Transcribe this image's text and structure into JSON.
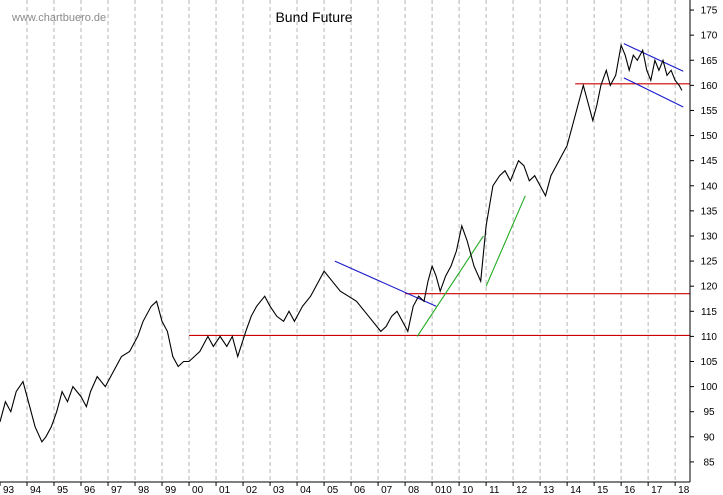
{
  "watermark": "www.chartbuero.de",
  "chart_data": {
    "type": "line",
    "title": "Bund Future",
    "xlabel": "",
    "ylabel": "",
    "ylim": [
      81,
      177
    ],
    "xlim": [
      1993.0,
      2018.55
    ],
    "y_axis_side": "right",
    "y_ticks": [
      85,
      90,
      95,
      100,
      105,
      110,
      115,
      120,
      125,
      130,
      135,
      140,
      145,
      150,
      155,
      160,
      165,
      170,
      175
    ],
    "x_ticks": [
      {
        "year": 1993,
        "label": "93"
      },
      {
        "year": 1994,
        "label": "94"
      },
      {
        "year": 1995,
        "label": "95"
      },
      {
        "year": 1996,
        "label": "96"
      },
      {
        "year": 1997,
        "label": "97"
      },
      {
        "year": 1998,
        "label": "98"
      },
      {
        "year": 1999,
        "label": "99"
      },
      {
        "year": 2000,
        "label": "00"
      },
      {
        "year": 2001,
        "label": "01"
      },
      {
        "year": 2002,
        "label": "02"
      },
      {
        "year": 2003,
        "label": "03"
      },
      {
        "year": 2004,
        "label": "04"
      },
      {
        "year": 2005,
        "label": "05"
      },
      {
        "year": 2006,
        "label": "06"
      },
      {
        "year": 2007,
        "label": "07"
      },
      {
        "year": 2008,
        "label": "08"
      },
      {
        "year": 2009,
        "label": "010"
      },
      {
        "year": 2010,
        "label": "10"
      },
      {
        "year": 2011,
        "label": "11"
      },
      {
        "year": 2012,
        "label": "12"
      },
      {
        "year": 2013,
        "label": "13"
      },
      {
        "year": 2014,
        "label": "14"
      },
      {
        "year": 2015,
        "label": "15"
      },
      {
        "year": 2016,
        "label": "16"
      },
      {
        "year": 2017,
        "label": "17"
      },
      {
        "year": 2018,
        "label": "18"
      }
    ],
    "grid": "vertical dashed",
    "series": [
      {
        "color": "#000000",
        "x": [
          1993.0,
          1993.2,
          1993.4,
          1993.6,
          1993.85,
          1994.05,
          1994.3,
          1994.55,
          1994.7,
          1994.9,
          1995.1,
          1995.3,
          1995.5,
          1995.7,
          1996.0,
          1996.2,
          1996.35,
          1996.6,
          1996.9,
          1997.2,
          1997.5,
          1997.8,
          1998.1,
          1998.3,
          1998.6,
          1998.8,
          1999.0,
          1999.2,
          1999.4,
          1999.6,
          1999.8,
          2000.0,
          2000.2,
          2000.4,
          2000.7,
          2000.9,
          2001.15,
          2001.4,
          2001.6,
          2001.8,
          2002.1,
          2002.3,
          2002.5,
          2002.8,
          2003.0,
          2003.25,
          2003.5,
          2003.7,
          2003.9,
          2004.2,
          2004.5,
          2004.8,
          2005.0,
          2005.3,
          2005.6,
          2005.9,
          2006.2,
          2006.5,
          2006.8,
          2007.1,
          2007.3,
          2007.5,
          2007.7,
          2007.9,
          2008.1,
          2008.3,
          2008.5,
          2008.7,
          2008.85,
          2009.0,
          2009.15,
          2009.3,
          2009.5,
          2009.7,
          2009.9,
          2010.1,
          2010.3,
          2010.55,
          2010.8,
          2011.0,
          2011.25,
          2011.5,
          2011.7,
          2011.9,
          2012.05,
          2012.2,
          2012.4,
          2012.6,
          2012.8,
          2013.0,
          2013.2,
          2013.4,
          2013.6,
          2013.8,
          2014.0,
          2014.2,
          2014.4,
          2014.6,
          2014.8,
          2014.95,
          2015.1,
          2015.25,
          2015.45,
          2015.6,
          2015.8,
          2016.0,
          2016.15,
          2016.3,
          2016.45,
          2016.6,
          2016.8,
          2016.95,
          2017.1,
          2017.25,
          2017.4,
          2017.55,
          2017.7,
          2017.85,
          2018.0,
          2018.15,
          2018.25
        ],
        "y": [
          93,
          97,
          95,
          99,
          101,
          97,
          92,
          89,
          90,
          92,
          95,
          99,
          97,
          100,
          98,
          96,
          99,
          102,
          100,
          103,
          106,
          107,
          110,
          113,
          116,
          117,
          113,
          111,
          106,
          104,
          105,
          105,
          106,
          107,
          110,
          108,
          110,
          108,
          110,
          106,
          111,
          114,
          116,
          118,
          116,
          114,
          113,
          115,
          113,
          116,
          118,
          121,
          123,
          121,
          119,
          118,
          117,
          115,
          113,
          111,
          112,
          114,
          115,
          113,
          111,
          116,
          118,
          117,
          121,
          124,
          122,
          119,
          122,
          124,
          127,
          132,
          129,
          124,
          121,
          132,
          140,
          142,
          143,
          141,
          143,
          145,
          144,
          141,
          142,
          140,
          138,
          142,
          144,
          146,
          148,
          152,
          156,
          160,
          156,
          153,
          156,
          160,
          163,
          160,
          162,
          168,
          166,
          163,
          166,
          165,
          167,
          163,
          161,
          165,
          163,
          165,
          162,
          163,
          161,
          160,
          159
        ]
      }
    ],
    "lines": [
      {
        "color": "#cc0000",
        "x": [
          2000.0,
          2018.55
        ],
        "y": [
          110.2,
          110.2
        ]
      },
      {
        "color": "#cc0000",
        "x": [
          2008.0,
          2018.55
        ],
        "y": [
          118.5,
          118.5
        ]
      },
      {
        "color": "#cc0000",
        "x": [
          2014.3,
          2018.55
        ],
        "y": [
          160.3,
          160.3
        ]
      },
      {
        "color": "#1a1acc",
        "x": [
          2005.4,
          2009.15
        ],
        "y": [
          125,
          116
        ]
      },
      {
        "color": "#1a1acc",
        "x": [
          2016.1,
          2018.3
        ],
        "y": [
          168.3,
          162.8
        ]
      },
      {
        "color": "#1a1acc",
        "x": [
          2016.1,
          2018.3
        ],
        "y": [
          161.5,
          155.7
        ]
      },
      {
        "color": "#22aa22",
        "x": [
          2008.45,
          2010.9
        ],
        "y": [
          110,
          130
        ]
      },
      {
        "color": "#22aa22",
        "x": [
          2011.0,
          2012.45
        ],
        "y": [
          120,
          138
        ]
      }
    ]
  }
}
